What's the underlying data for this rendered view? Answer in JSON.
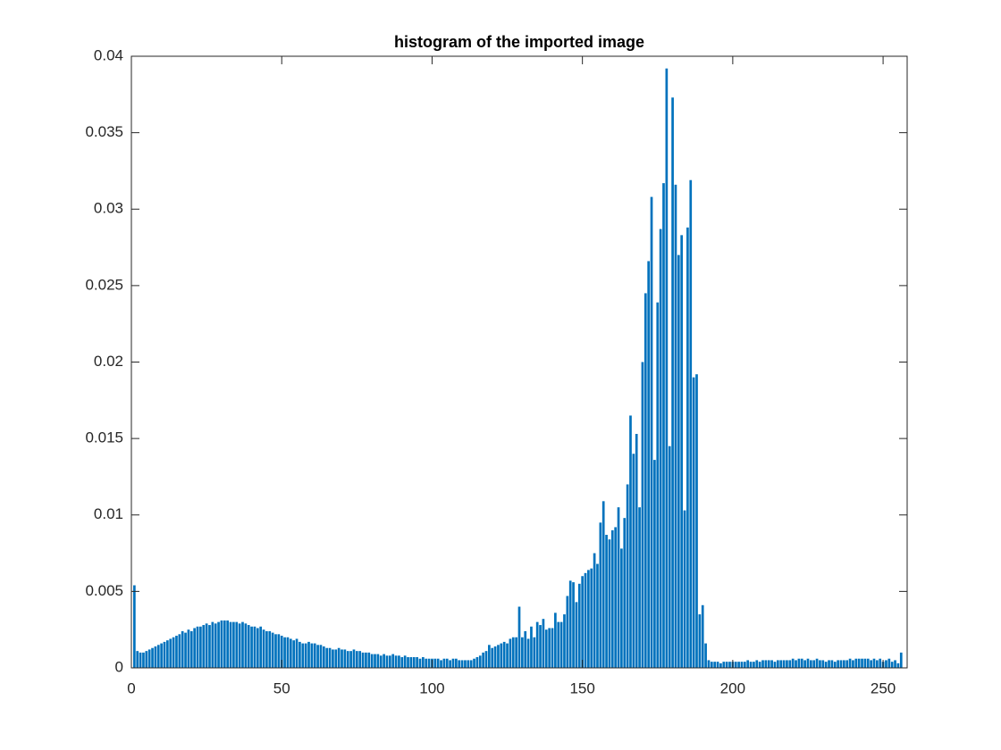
{
  "chart_data": {
    "type": "bar",
    "title": "histogram of the imported image",
    "color": "#0072bd",
    "xlim": [
      0,
      258
    ],
    "xticks": [
      0,
      50,
      100,
      150,
      200,
      250
    ],
    "ylim": [
      0,
      0.04
    ],
    "yticks": [
      0,
      0.005,
      0.01,
      0.015,
      0.02,
      0.025,
      0.03,
      0.035,
      0.04
    ],
    "x": [
      1,
      2,
      3,
      4,
      5,
      6,
      7,
      8,
      9,
      10,
      11,
      12,
      13,
      14,
      15,
      16,
      17,
      18,
      19,
      20,
      21,
      22,
      23,
      24,
      25,
      26,
      27,
      28,
      29,
      30,
      31,
      32,
      33,
      34,
      35,
      36,
      37,
      38,
      39,
      40,
      41,
      42,
      43,
      44,
      45,
      46,
      47,
      48,
      49,
      50,
      51,
      52,
      53,
      54,
      55,
      56,
      57,
      58,
      59,
      60,
      61,
      62,
      63,
      64,
      65,
      66,
      67,
      68,
      69,
      70,
      71,
      72,
      73,
      74,
      75,
      76,
      77,
      78,
      79,
      80,
      81,
      82,
      83,
      84,
      85,
      86,
      87,
      88,
      89,
      90,
      91,
      92,
      93,
      94,
      95,
      96,
      97,
      98,
      99,
      100,
      101,
      102,
      103,
      104,
      105,
      106,
      107,
      108,
      109,
      110,
      111,
      112,
      113,
      114,
      115,
      116,
      117,
      118,
      119,
      120,
      121,
      122,
      123,
      124,
      125,
      126,
      127,
      128,
      129,
      130,
      131,
      132,
      133,
      134,
      135,
      136,
      137,
      138,
      139,
      140,
      141,
      142,
      143,
      144,
      145,
      146,
      147,
      148,
      149,
      150,
      151,
      152,
      153,
      154,
      155,
      156,
      157,
      158,
      159,
      160,
      161,
      162,
      163,
      164,
      165,
      166,
      167,
      168,
      169,
      170,
      171,
      172,
      173,
      174,
      175,
      176,
      177,
      178,
      179,
      180,
      181,
      182,
      183,
      184,
      185,
      186,
      187,
      188,
      189,
      190,
      191,
      192,
      193,
      194,
      195,
      196,
      197,
      198,
      199,
      200,
      201,
      202,
      203,
      204,
      205,
      206,
      207,
      208,
      209,
      210,
      211,
      212,
      213,
      214,
      215,
      216,
      217,
      218,
      219,
      220,
      221,
      222,
      223,
      224,
      225,
      226,
      227,
      228,
      229,
      230,
      231,
      232,
      233,
      234,
      235,
      236,
      237,
      238,
      239,
      240,
      241,
      242,
      243,
      244,
      245,
      246,
      247,
      248,
      249,
      250,
      251,
      252,
      253,
      254,
      255,
      256
    ],
    "values": [
      0.0054,
      0.0011,
      0.001,
      0.001,
      0.0011,
      0.0012,
      0.0013,
      0.0014,
      0.0015,
      0.0016,
      0.0017,
      0.0018,
      0.0019,
      0.002,
      0.0021,
      0.0022,
      0.0024,
      0.0023,
      0.0025,
      0.0024,
      0.0026,
      0.0027,
      0.0027,
      0.0028,
      0.0029,
      0.0028,
      0.003,
      0.0029,
      0.003,
      0.0031,
      0.0031,
      0.0031,
      0.003,
      0.003,
      0.003,
      0.0029,
      0.003,
      0.0029,
      0.0028,
      0.0027,
      0.0027,
      0.0026,
      0.0027,
      0.0025,
      0.0024,
      0.0024,
      0.0023,
      0.0022,
      0.0022,
      0.0021,
      0.002,
      0.002,
      0.0019,
      0.0018,
      0.0019,
      0.0017,
      0.0016,
      0.0016,
      0.0017,
      0.0016,
      0.0016,
      0.0015,
      0.0015,
      0.0014,
      0.0013,
      0.0013,
      0.0012,
      0.0012,
      0.0013,
      0.0012,
      0.0012,
      0.0011,
      0.0011,
      0.0012,
      0.0011,
      0.0011,
      0.001,
      0.001,
      0.001,
      0.0009,
      0.0009,
      0.0009,
      0.0008,
      0.0009,
      0.0008,
      0.0008,
      0.0009,
      0.0008,
      0.0008,
      0.0007,
      0.0008,
      0.0007,
      0.0007,
      0.0007,
      0.0007,
      0.0006,
      0.0007,
      0.0006,
      0.0006,
      0.0006,
      0.0006,
      0.0006,
      0.0005,
      0.0006,
      0.0006,
      0.0005,
      0.0006,
      0.0006,
      0.0005,
      0.0005,
      0.0005,
      0.0005,
      0.0005,
      0.0006,
      0.0007,
      0.0008,
      0.001,
      0.0011,
      0.0015,
      0.0013,
      0.0014,
      0.0015,
      0.0016,
      0.0017,
      0.0016,
      0.0019,
      0.002,
      0.002,
      0.004,
      0.002,
      0.0024,
      0.0019,
      0.0027,
      0.002,
      0.003,
      0.0028,
      0.0032,
      0.0025,
      0.0026,
      0.0026,
      0.0036,
      0.003,
      0.003,
      0.0035,
      0.0047,
      0.0057,
      0.0056,
      0.0043,
      0.0055,
      0.006,
      0.0062,
      0.0064,
      0.0065,
      0.0075,
      0.0068,
      0.0095,
      0.0109,
      0.0087,
      0.0084,
      0.009,
      0.0092,
      0.0105,
      0.0078,
      0.0098,
      0.012,
      0.0165,
      0.014,
      0.0153,
      0.0105,
      0.02,
      0.0245,
      0.0266,
      0.0308,
      0.0136,
      0.0239,
      0.0287,
      0.0317,
      0.0392,
      0.0145,
      0.0373,
      0.0316,
      0.027,
      0.0283,
      0.0103,
      0.0288,
      0.0319,
      0.019,
      0.0192,
      0.0035,
      0.0041,
      0.0016,
      0.0005,
      0.0004,
      0.0004,
      0.0004,
      0.0003,
      0.0004,
      0.0004,
      0.0004,
      0.0004,
      0.0004,
      0.0004,
      0.0004,
      0.0004,
      0.0005,
      0.0004,
      0.0004,
      0.0005,
      0.0004,
      0.0005,
      0.0005,
      0.0005,
      0.0005,
      0.0004,
      0.0005,
      0.0005,
      0.0005,
      0.0005,
      0.0005,
      0.0006,
      0.0005,
      0.0006,
      0.0006,
      0.0005,
      0.0006,
      0.0005,
      0.0005,
      0.0006,
      0.0005,
      0.0005,
      0.0004,
      0.0005,
      0.0005,
      0.0004,
      0.0005,
      0.0005,
      0.0005,
      0.0005,
      0.0006,
      0.0005,
      0.0006,
      0.0006,
      0.0006,
      0.0006,
      0.0006,
      0.0005,
      0.0006,
      0.0005,
      0.0006,
      0.0004,
      0.0005,
      0.0006,
      0.0004,
      0.0005,
      0.0003,
      0.001
    ]
  }
}
